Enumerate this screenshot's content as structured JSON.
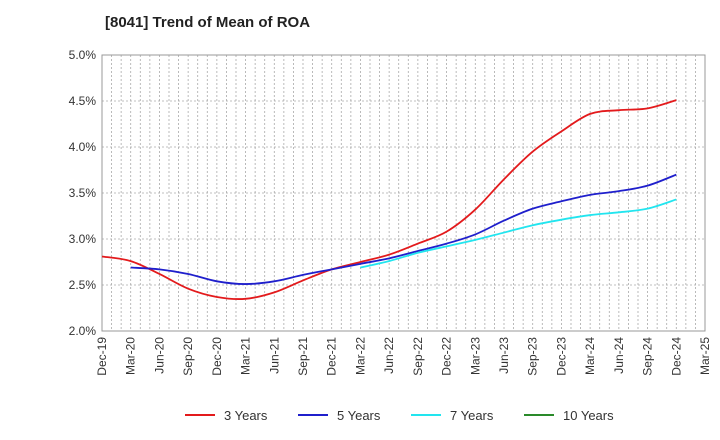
{
  "chart_data": {
    "type": "line",
    "title": "[8041]  Trend of Mean of ROA",
    "xlabel": "",
    "ylabel": "",
    "ylim": [
      2.0,
      5.0
    ],
    "y_ticks": [
      2.0,
      2.5,
      3.0,
      3.5,
      4.0,
      4.5,
      5.0
    ],
    "y_tick_labels": [
      "2.0%",
      "2.5%",
      "3.0%",
      "3.5%",
      "4.0%",
      "4.5%",
      "5.0%"
    ],
    "categories": [
      "Dec-19",
      "Mar-20",
      "Jun-20",
      "Sep-20",
      "Dec-20",
      "Mar-21",
      "Jun-21",
      "Sep-21",
      "Dec-21",
      "Mar-22",
      "Jun-22",
      "Sep-22",
      "Dec-22",
      "Mar-23",
      "Jun-23",
      "Sep-23",
      "Dec-23",
      "Mar-24",
      "Jun-24",
      "Sep-24",
      "Dec-24",
      "Mar-25"
    ],
    "grid": true,
    "legend_position": "bottom",
    "series": [
      {
        "name": "3 Years",
        "color": "#e31a1c",
        "values": [
          2.81,
          2.76,
          2.62,
          2.46,
          2.37,
          2.35,
          2.42,
          2.55,
          2.67,
          2.75,
          2.83,
          2.95,
          3.08,
          3.32,
          3.65,
          3.95,
          4.17,
          4.36,
          4.4,
          4.42,
          4.51,
          null
        ]
      },
      {
        "name": "5 Years",
        "color": "#1f1fcc",
        "values": [
          null,
          2.69,
          2.67,
          2.62,
          2.54,
          2.51,
          2.54,
          2.61,
          2.67,
          2.73,
          2.79,
          2.87,
          2.95,
          3.05,
          3.2,
          3.33,
          3.41,
          3.48,
          3.52,
          3.58,
          3.7,
          null
        ]
      },
      {
        "name": "7 Years",
        "color": "#22e5ef",
        "values": [
          null,
          null,
          null,
          null,
          null,
          null,
          null,
          null,
          null,
          2.69,
          2.76,
          2.85,
          2.92,
          2.99,
          3.07,
          3.15,
          3.21,
          3.26,
          3.29,
          3.33,
          3.43,
          null
        ]
      },
      {
        "name": "10 Years",
        "color": "#2a8a2a",
        "values": [
          null,
          null,
          null,
          null,
          null,
          null,
          null,
          null,
          null,
          null,
          null,
          null,
          null,
          null,
          null,
          null,
          null,
          null,
          null,
          null,
          null,
          null
        ]
      }
    ]
  }
}
